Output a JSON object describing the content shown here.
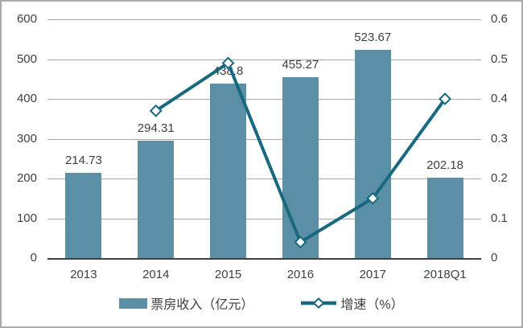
{
  "chart_data": {
    "type": "combo",
    "categories": [
      "2013",
      "2014",
      "2015",
      "2016",
      "2017",
      "2018Q1"
    ],
    "series": [
      {
        "name": "票房收入（亿元）",
        "type": "bar",
        "axis": "left",
        "values": [
          214.73,
          294.31,
          438.8,
          455.27,
          523.67,
          202.18
        ],
        "value_labels": [
          "214.73",
          "294.31",
          "438.8",
          "455.27",
          "523.67",
          "202.18"
        ],
        "color": "#5b8fa6"
      },
      {
        "name": "增速（%）",
        "type": "line",
        "axis": "right",
        "values": [
          null,
          0.37,
          0.49,
          0.04,
          0.15,
          0.4
        ],
        "marker": "diamond",
        "color": "#17697f"
      }
    ],
    "left_axis": {
      "min": 0,
      "max": 600,
      "step": 100,
      "ticks": [
        "600",
        "500",
        "400",
        "300",
        "200",
        "100",
        "0"
      ]
    },
    "right_axis": {
      "min": 0,
      "max": 0.6,
      "step": 0.1,
      "ticks": [
        "0.6",
        "0.5",
        "0.4",
        "0.3",
        "0.2",
        "0.1",
        "0"
      ]
    },
    "title": "",
    "grid": true,
    "legend_position": "bottom",
    "colors": {
      "bar": "#5b8fa6",
      "line": "#17697f",
      "marker_fill": "#ffffff",
      "grid": "#a9a9a9",
      "axis_line": "#404040",
      "text": "#404040",
      "frame_border": "#aaaaaa"
    }
  }
}
